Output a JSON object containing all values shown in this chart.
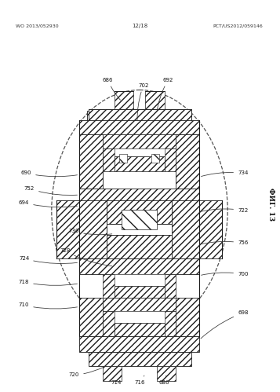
{
  "bg_color": "#ffffff",
  "fig_width": 3.57,
  "fig_height": 4.99,
  "dpi": 100,
  "top_left_text": "WO 2013/052930",
  "top_right_text": "PCT/US2012/059146",
  "top_center_text": "12/18",
  "fig_label": "ФИГ. 13",
  "ec": "#1a1a1a",
  "hatch_color": "#444444",
  "line_color": "#1a1a1a"
}
